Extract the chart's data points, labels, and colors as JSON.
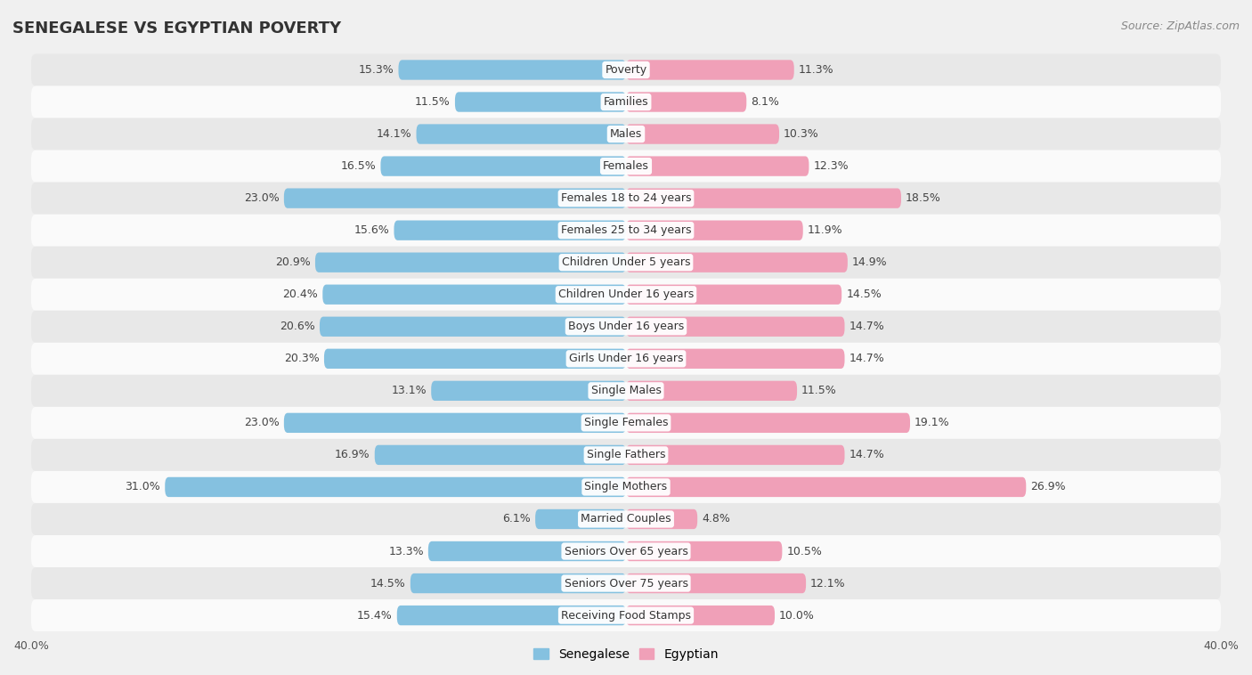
{
  "title": "SENEGALESE VS EGYPTIAN POVERTY",
  "source": "Source: ZipAtlas.com",
  "categories": [
    "Poverty",
    "Families",
    "Males",
    "Females",
    "Females 18 to 24 years",
    "Females 25 to 34 years",
    "Children Under 5 years",
    "Children Under 16 years",
    "Boys Under 16 years",
    "Girls Under 16 years",
    "Single Males",
    "Single Females",
    "Single Fathers",
    "Single Mothers",
    "Married Couples",
    "Seniors Over 65 years",
    "Seniors Over 75 years",
    "Receiving Food Stamps"
  ],
  "senegalese": [
    15.3,
    11.5,
    14.1,
    16.5,
    23.0,
    15.6,
    20.9,
    20.4,
    20.6,
    20.3,
    13.1,
    23.0,
    16.9,
    31.0,
    6.1,
    13.3,
    14.5,
    15.4
  ],
  "egyptian": [
    11.3,
    8.1,
    10.3,
    12.3,
    18.5,
    11.9,
    14.9,
    14.5,
    14.7,
    14.7,
    11.5,
    19.1,
    14.7,
    26.9,
    4.8,
    10.5,
    12.1,
    10.0
  ],
  "senegalese_color": "#85c1e0",
  "egyptian_color": "#f0a0b8",
  "background_color": "#f0f0f0",
  "row_light_color": "#fafafa",
  "row_dark_color": "#e8e8e8",
  "axis_limit": 40.0,
  "bar_height": 0.62,
  "label_fontsize": 9.0,
  "category_fontsize": 9.0,
  "title_fontsize": 13,
  "source_fontsize": 9
}
